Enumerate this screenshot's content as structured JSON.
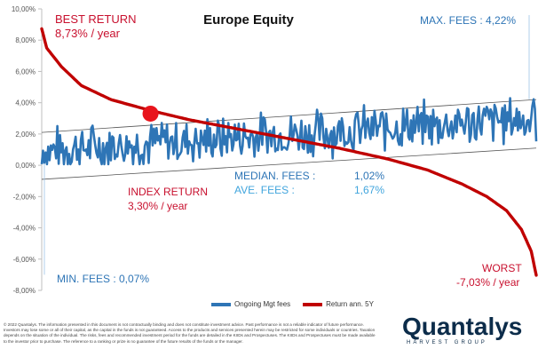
{
  "chart_data": {
    "type": "line",
    "title": "Europe Equity",
    "y_ticks": [
      "10,00%",
      "8,00%",
      "6,00%",
      "4,00%",
      "2,00%",
      "0,00%",
      "-2,00%",
      "-4,00%",
      "-6,00%",
      "-8,00%"
    ],
    "ylim": [
      -8,
      10
    ],
    "grid": false,
    "legend_position": "bottom",
    "series": [
      {
        "name": "Ongoing Mgt fees",
        "color": "#2e75b6",
        "kind": "noisy-band",
        "points": 380,
        "lower_trend": [
          -0.9,
          1.1
        ],
        "upper_trend": [
          2.1,
          4.2
        ],
        "min": 0.07,
        "max": 4.22
      },
      {
        "name": "Return ann. 5Y",
        "color": "#c00000",
        "kind": "sorted-descending",
        "x": [
          0,
          0.01,
          0.04,
          0.08,
          0.14,
          0.22,
          0.3,
          0.4,
          0.5,
          0.6,
          0.7,
          0.78,
          0.85,
          0.9,
          0.94,
          0.97,
          0.99,
          1.0
        ],
        "values": [
          8.73,
          7.5,
          6.3,
          5.1,
          4.2,
          3.5,
          2.9,
          2.3,
          1.7,
          1.1,
          0.4,
          -0.3,
          -1.2,
          -2.0,
          -2.9,
          -4.1,
          -5.5,
          -7.03
        ]
      }
    ],
    "highlight": {
      "x": 0.22,
      "y": 3.3,
      "label": "INDEX RETURN"
    }
  },
  "annotations": {
    "best_label": "BEST RETURN",
    "best_value": "8,73% / year",
    "max_fees": "MAX. FEES : 4,22%",
    "index_label": "INDEX RETURN",
    "index_value": "3,30% / year",
    "median_label": "MEDIAN. FEES :",
    "median_value": "1,02%",
    "ave_label": "AVE. FEES :",
    "ave_value": "1,67%",
    "min_fees": "MIN. FEES : 0,07%",
    "worst_label": "WORST",
    "worst_value": "-7,03% / year"
  },
  "footer": {
    "disclaimer": "© 2022 Quantalys. The information presented in this document is not contractually binding and does not constitute investment advice. Past performance is not a reliable indicator of future performance. Investors may lose some or all of their capital, as the capital in the funds is not guaranteed. Access to the products and services presented herein may be restricted for some individuals or countries. Taxation depends on the situation of the individual. The risks, fees and recommended investment period for the funds are detailed in the KIIDs and Prospectuses. The KIIDs and Prospectuses must be made available to the investor prior to purchase. The reference to a ranking or prize is no guarantee of the future results of the funds or the manager."
  },
  "logo": {
    "name": "Quantalys",
    "tagline": "HARVEST GROUP"
  }
}
